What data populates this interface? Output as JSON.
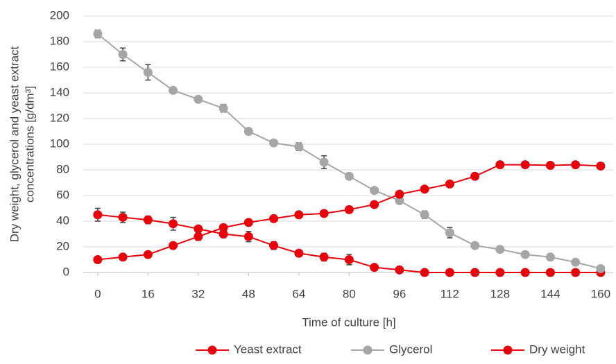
{
  "chart_data": {
    "type": "line",
    "ylabel": [
      "Dry weight, glycerol and yeast extract",
      "concentrations [g/dm³]"
    ],
    "xlabel": "Time of culture [h]",
    "x": [
      0,
      8,
      16,
      24,
      32,
      40,
      48,
      56,
      64,
      72,
      80,
      88,
      96,
      104,
      112,
      120,
      128,
      136,
      144,
      152,
      160
    ],
    "series": [
      {
        "name": "Yeast extract",
        "color": "#e8000b",
        "values": [
          45,
          43,
          41,
          38,
          34,
          30,
          28,
          21,
          15,
          12,
          10,
          4,
          2,
          0,
          0,
          0,
          0,
          0,
          0,
          0,
          0
        ],
        "errors": [
          5,
          4,
          3,
          5,
          2,
          3,
          4,
          3,
          2,
          3,
          4,
          1,
          1,
          0,
          0,
          0,
          0,
          0,
          0,
          0,
          0
        ]
      },
      {
        "name": "Glycerol",
        "color": "#a6a6a6",
        "values": [
          186,
          170,
          156,
          142,
          135,
          128,
          110,
          101,
          98,
          86,
          75,
          64,
          56,
          45,
          31,
          21,
          18,
          14,
          12,
          8,
          3
        ],
        "errors": [
          3,
          5,
          6,
          2,
          2,
          3,
          1,
          1,
          3,
          5,
          2,
          2,
          2,
          3,
          4,
          2,
          1,
          2,
          1,
          1,
          1
        ]
      },
      {
        "name": "Dry weight",
        "color": "#e8000b",
        "values": [
          10,
          12,
          14,
          21,
          28,
          35,
          39,
          42,
          45,
          46,
          49,
          53,
          61,
          65,
          69,
          75,
          84,
          84,
          83.5,
          84,
          83
        ],
        "errors": [
          0,
          0,
          0,
          2,
          3,
          1,
          0,
          0,
          0,
          0,
          0,
          0,
          0,
          0,
          0,
          0,
          0,
          0,
          0,
          0,
          0
        ]
      }
    ],
    "xlim": [
      -4.6,
      164
    ],
    "xticks": [
      0,
      16,
      32,
      48,
      64,
      80,
      96,
      112,
      128,
      144,
      160
    ],
    "ylim": [
      0,
      200
    ],
    "yticks": [
      0,
      20,
      40,
      60,
      80,
      100,
      120,
      140,
      160,
      180,
      200
    ],
    "grid": true,
    "legend": "bottom"
  }
}
